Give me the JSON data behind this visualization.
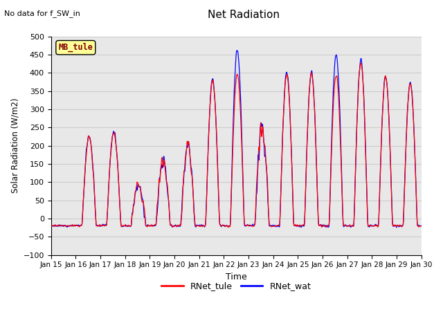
{
  "title": "Net Radiation",
  "suptitle": "No data for f_SW_in",
  "xlabel": "Time",
  "ylabel": "Solar Radiation (W/m2)",
  "ylim": [
    -100,
    500
  ],
  "yticks": [
    -100,
    -50,
    0,
    50,
    100,
    150,
    200,
    250,
    300,
    350,
    400,
    450,
    500
  ],
  "xtick_labels": [
    "Jan 15",
    "Jan 16",
    "Jan 17",
    "Jan 18",
    "Jan 19",
    "Jan 20",
    "Jan 21",
    "Jan 22",
    "Jan 23",
    "Jan 24",
    "Jan 25",
    "Jan 26",
    "Jan 27",
    "Jan 28",
    "Jan 29",
    "Jan 30"
  ],
  "legend_labels": [
    "RNet_tule",
    "RNet_wat"
  ],
  "line_colors": [
    "red",
    "blue"
  ],
  "grid_color": "#cccccc",
  "bg_color": "#e8e8e8",
  "inset_label": "MB_tule",
  "inset_color": "#800000",
  "inset_bg": "#ffff99",
  "n_days": 15,
  "points_per_day": 144,
  "day_peaks_tule": [
    0,
    225,
    235,
    95,
    160,
    208,
    378,
    395,
    248,
    397,
    398,
    395,
    430,
    388,
    372
  ],
  "day_peaks_wat": [
    0,
    228,
    240,
    90,
    158,
    205,
    382,
    462,
    252,
    402,
    402,
    450,
    433,
    392,
    375
  ],
  "day_cloud_noise": [
    0.0,
    0.15,
    0.12,
    0.6,
    0.45,
    0.35,
    0.08,
    0.04,
    0.45,
    0.06,
    0.06,
    0.04,
    0.06,
    0.06,
    0.06
  ],
  "night_val": -20,
  "figsize": [
    6.4,
    4.8
  ],
  "dpi": 100
}
